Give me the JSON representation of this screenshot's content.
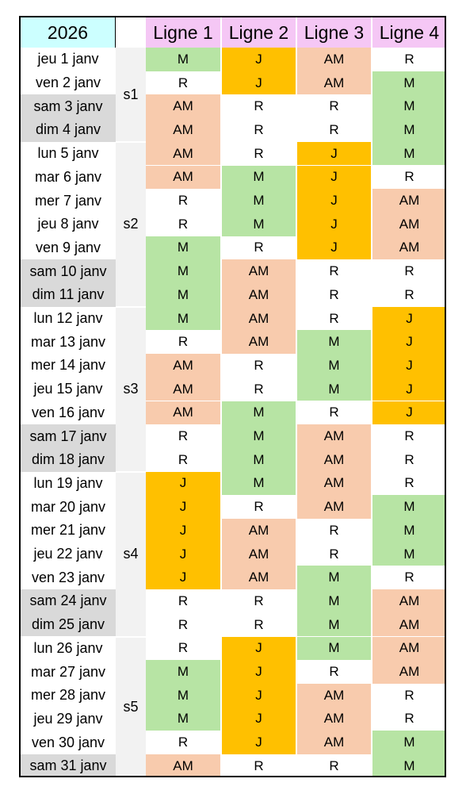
{
  "header": {
    "year": "2026",
    "lines": [
      "Ligne 1",
      "Ligne 2",
      "Ligne 3",
      "Ligne 4"
    ]
  },
  "weeks": [
    {
      "label": "s1",
      "first_row": 0,
      "last_row": 3
    },
    {
      "label": "s2",
      "first_row": 4,
      "last_row": 10
    },
    {
      "label": "s3",
      "first_row": 11,
      "last_row": 17
    },
    {
      "label": "s4",
      "first_row": 18,
      "last_row": 24
    },
    {
      "label": "s5",
      "first_row": 25,
      "last_row": 30
    }
  ],
  "colors": {
    "M": "#b7e4a4",
    "J": "#ffc000",
    "AM": "#f8cbad",
    "R": "#ffffff",
    "weekend": "#d9d9d9",
    "year_header": "#ccffff",
    "line_header": "#f5c7f5"
  },
  "rows": [
    {
      "date": "jeu 1 janv",
      "weekend": false,
      "shifts": [
        "M",
        "J",
        "AM",
        "R"
      ]
    },
    {
      "date": "ven 2 janv",
      "weekend": false,
      "shifts": [
        "R",
        "J",
        "AM",
        "M"
      ]
    },
    {
      "date": "sam 3 janv",
      "weekend": true,
      "shifts": [
        "AM",
        "R",
        "R",
        "M"
      ]
    },
    {
      "date": "dim 4 janv",
      "weekend": true,
      "shifts": [
        "AM",
        "R",
        "R",
        "M"
      ]
    },
    {
      "date": "lun 5 janv",
      "weekend": false,
      "shifts": [
        "AM",
        "R",
        "J",
        "M"
      ]
    },
    {
      "date": "mar 6 janv",
      "weekend": false,
      "shifts": [
        "AM",
        "M",
        "J",
        "R"
      ]
    },
    {
      "date": "mer 7 janv",
      "weekend": false,
      "shifts": [
        "R",
        "M",
        "J",
        "AM"
      ]
    },
    {
      "date": "jeu 8 janv",
      "weekend": false,
      "shifts": [
        "R",
        "M",
        "J",
        "AM"
      ]
    },
    {
      "date": "ven 9 janv",
      "weekend": false,
      "shifts": [
        "M",
        "R",
        "J",
        "AM"
      ]
    },
    {
      "date": "sam 10 janv",
      "weekend": true,
      "shifts": [
        "M",
        "AM",
        "R",
        "R"
      ]
    },
    {
      "date": "dim 11 janv",
      "weekend": true,
      "shifts": [
        "M",
        "AM",
        "R",
        "R"
      ]
    },
    {
      "date": "lun 12 janv",
      "weekend": false,
      "shifts": [
        "M",
        "AM",
        "R",
        "J"
      ]
    },
    {
      "date": "mar 13 janv",
      "weekend": false,
      "shifts": [
        "R",
        "AM",
        "M",
        "J"
      ]
    },
    {
      "date": "mer 14 janv",
      "weekend": false,
      "shifts": [
        "AM",
        "R",
        "M",
        "J"
      ]
    },
    {
      "date": "jeu 15 janv",
      "weekend": false,
      "shifts": [
        "AM",
        "R",
        "M",
        "J"
      ]
    },
    {
      "date": "ven 16 janv",
      "weekend": false,
      "shifts": [
        "AM",
        "M",
        "R",
        "J"
      ]
    },
    {
      "date": "sam 17 janv",
      "weekend": true,
      "shifts": [
        "R",
        "M",
        "AM",
        "R"
      ]
    },
    {
      "date": "dim 18 janv",
      "weekend": true,
      "shifts": [
        "R",
        "M",
        "AM",
        "R"
      ]
    },
    {
      "date": "lun 19 janv",
      "weekend": false,
      "shifts": [
        "J",
        "M",
        "AM",
        "R"
      ]
    },
    {
      "date": "mar 20 janv",
      "weekend": false,
      "shifts": [
        "J",
        "R",
        "AM",
        "M"
      ]
    },
    {
      "date": "mer 21 janv",
      "weekend": false,
      "shifts": [
        "J",
        "AM",
        "R",
        "M"
      ]
    },
    {
      "date": "jeu 22 janv",
      "weekend": false,
      "shifts": [
        "J",
        "AM",
        "R",
        "M"
      ]
    },
    {
      "date": "ven 23 janv",
      "weekend": false,
      "shifts": [
        "J",
        "AM",
        "M",
        "R"
      ]
    },
    {
      "date": "sam 24 janv",
      "weekend": true,
      "shifts": [
        "R",
        "R",
        "M",
        "AM"
      ]
    },
    {
      "date": "dim 25 janv",
      "weekend": true,
      "shifts": [
        "R",
        "R",
        "M",
        "AM"
      ]
    },
    {
      "date": "lun 26 janv",
      "weekend": false,
      "shifts": [
        "R",
        "J",
        "M",
        "AM"
      ]
    },
    {
      "date": "mar 27 janv",
      "weekend": false,
      "shifts": [
        "M",
        "J",
        "R",
        "AM"
      ]
    },
    {
      "date": "mer 28 janv",
      "weekend": false,
      "shifts": [
        "M",
        "J",
        "AM",
        "R"
      ]
    },
    {
      "date": "jeu 29 janv",
      "weekend": false,
      "shifts": [
        "M",
        "J",
        "AM",
        "R"
      ]
    },
    {
      "date": "ven 30 janv",
      "weekend": false,
      "shifts": [
        "R",
        "J",
        "AM",
        "M"
      ]
    },
    {
      "date": "sam 31 janv",
      "weekend": true,
      "shifts": [
        "AM",
        "R",
        "R",
        "M"
      ]
    }
  ]
}
